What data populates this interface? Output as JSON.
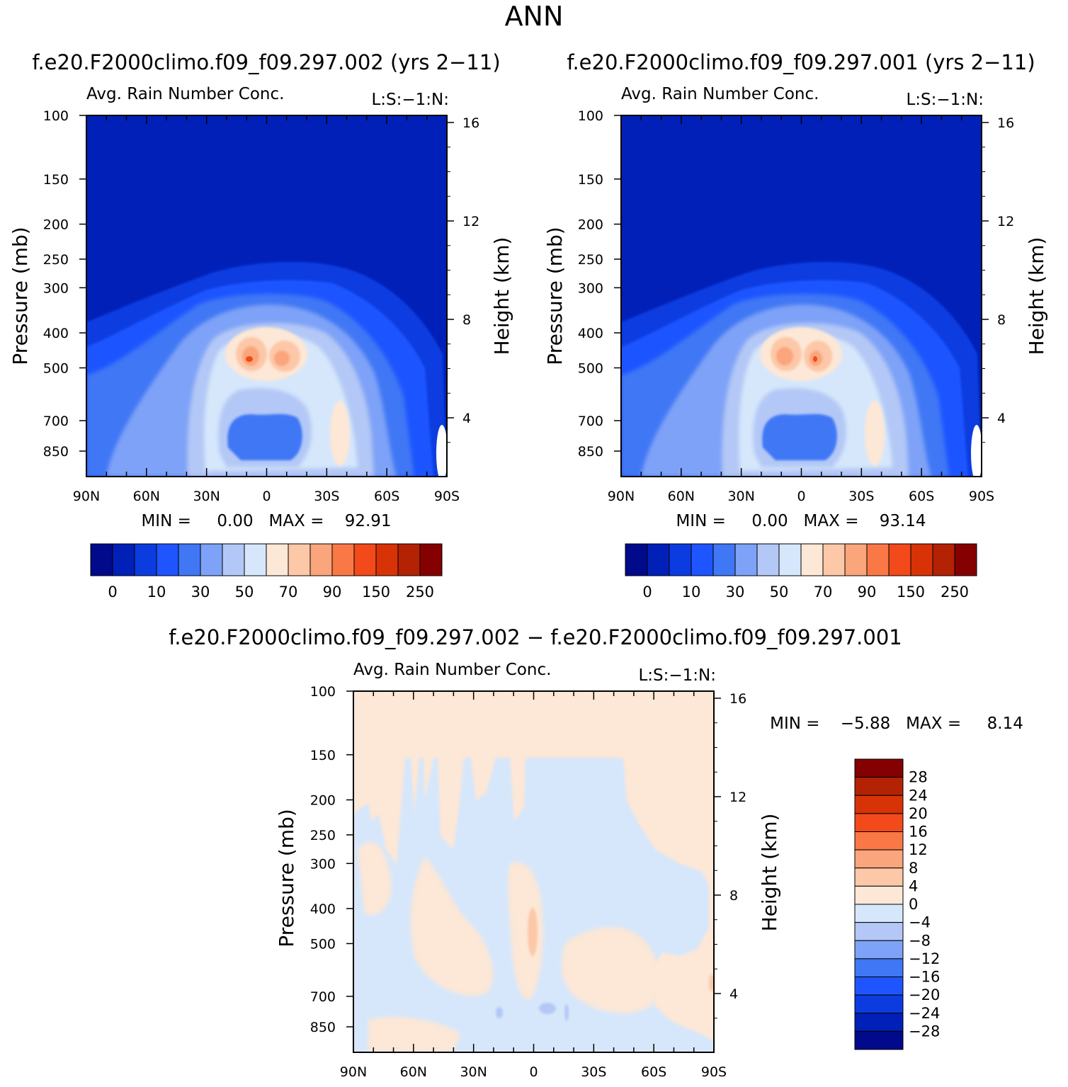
{
  "figure": {
    "season": "ANN",
    "diff_title": "f.e20.F2000climo.f09_f09.297.002 − f.e20.F2000climo.f09_f09.297.001"
  },
  "colors": {
    "abs_scale": [
      "#000a8a",
      "#0020b8",
      "#0c3ce0",
      "#1f55ff",
      "#3f77f5",
      "#7ea2f7",
      "#b3c8f6",
      "#d6e7fb",
      "#fde7d6",
      "#fcc8a8",
      "#fba57c",
      "#fa7845",
      "#f24a1a",
      "#d83306",
      "#b32203",
      "#850000"
    ],
    "diff_scale": [
      "#000a8a",
      "#0020b8",
      "#0c3ce0",
      "#1f55ff",
      "#3f77f5",
      "#7ea2f7",
      "#b3c8f6",
      "#d6e7fb",
      "#fde7d6",
      "#fcc8a8",
      "#fba57c",
      "#fa7845",
      "#f24a1a",
      "#d83306",
      "#b32203",
      "#850000"
    ]
  },
  "chart_data": [
    {
      "type": "heatmap",
      "title": "f.e20.F2000climo.f09_f09.297.002 (yrs 2−11)",
      "subtitle": "Avg. Rain Number Conc.",
      "level_label": "L:S:−1:N:",
      "xlabel": "",
      "ylabel": "Pressure (mb)",
      "ylabel_right": "Height (km)",
      "x_ticks": [
        "90N",
        "60N",
        "30N",
        "0",
        "30S",
        "60S",
        "90S"
      ],
      "y_ticks": [
        "100",
        "150",
        "200",
        "250",
        "300",
        "400",
        "500",
        "700",
        "850"
      ],
      "y_ticks_right": [
        "16",
        "12",
        "8",
        "4"
      ],
      "ylim": [
        100,
        1000
      ],
      "yscale": "log",
      "min_text": "MIN =     0.00   MAX =    92.91",
      "colorbar_levels": [
        "0",
        "10",
        "30",
        "50",
        "70",
        "90",
        "150",
        "250"
      ],
      "features": {
        "background": "levels 0-10 above ~300 mb",
        "maxima": "two maxima near 10N and 10S at ~450 mb (~90)",
        "minimum": "low values near equator at ~700 mb"
      }
    },
    {
      "type": "heatmap",
      "title": "f.e20.F2000climo.f09_f09.297.001 (yrs 2−11)",
      "subtitle": "Avg. Rain Number Conc.",
      "level_label": "L:S:−1:N:",
      "xlabel": "",
      "ylabel": "Pressure (mb)",
      "ylabel_right": "Height (km)",
      "x_ticks": [
        "90N",
        "60N",
        "30N",
        "0",
        "30S",
        "60S",
        "90S"
      ],
      "y_ticks": [
        "100",
        "150",
        "200",
        "250",
        "300",
        "400",
        "500",
        "700",
        "850"
      ],
      "y_ticks_right": [
        "16",
        "12",
        "8",
        "4"
      ],
      "ylim": [
        100,
        1000
      ],
      "yscale": "log",
      "min_text": "MIN =     0.00   MAX =    93.14",
      "colorbar_levels": [
        "0",
        "10",
        "30",
        "50",
        "70",
        "90",
        "150",
        "250"
      ]
    },
    {
      "type": "heatmap",
      "title": "f.e20.F2000climo.f09_f09.297.002 − f.e20.F2000climo.f09_f09.297.001",
      "subtitle": "Avg. Rain Number Conc.",
      "level_label": "L:S:−1:N:",
      "xlabel": "",
      "ylabel": "Pressure (mb)",
      "ylabel_right": "Height (km)",
      "x_ticks": [
        "90N",
        "60N",
        "30N",
        "0",
        "30S",
        "60S",
        "90S"
      ],
      "y_ticks": [
        "100",
        "150",
        "200",
        "250",
        "300",
        "400",
        "500",
        "700",
        "850"
      ],
      "y_ticks_right": [
        "16",
        "12",
        "8",
        "4"
      ],
      "ylim": [
        100,
        1000
      ],
      "yscale": "log",
      "min_text": "MIN =    −5.88   MAX =     8.14",
      "colorbar_levels": [
        "28",
        "24",
        "20",
        "16",
        "12",
        "8",
        "4",
        "0",
        "−4",
        "−8",
        "−12",
        "−16",
        "−20",
        "−24",
        "−28"
      ]
    }
  ]
}
